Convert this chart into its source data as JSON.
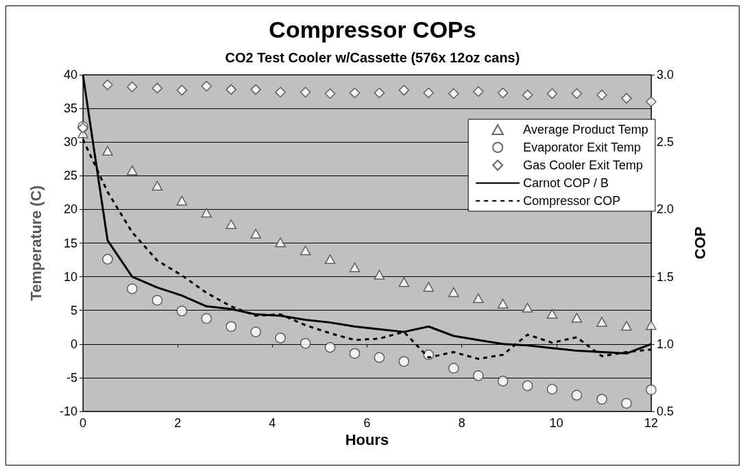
{
  "chart_data": {
    "type": "scatter",
    "title": "Compressor COPs",
    "subtitle": "CO2 Test Cooler w/Cassette (576x 12oz cans)",
    "xlabel": "Hours",
    "ylabel": "Temperature (C)",
    "y2label": "COP",
    "x": [
      0,
      0.52,
      1.04,
      1.57,
      2.09,
      2.61,
      3.13,
      3.65,
      4.17,
      4.7,
      5.22,
      5.74,
      6.26,
      6.78,
      7.3,
      7.83,
      8.35,
      8.87,
      9.39,
      9.91,
      10.43,
      10.96,
      11.48,
      12
    ],
    "series": [
      {
        "name": "Average Product Temp",
        "marker": "triangle",
        "color": "#ffffff",
        "values": [
          31.3,
          28.7,
          25.8,
          23.5,
          21.3,
          19.5,
          17.8,
          16.4,
          15.1,
          13.9,
          12.6,
          11.4,
          10.3,
          9.2,
          8.5,
          7.7,
          6.8,
          6.0,
          5.4,
          4.5,
          3.9,
          3.3,
          2.7,
          2.8
        ]
      },
      {
        "name": "Evaporator Exit Temp",
        "marker": "circle",
        "color": "#ffffff",
        "values": [
          32.3,
          12.6,
          8.2,
          6.5,
          4.9,
          3.8,
          2.6,
          1.8,
          0.9,
          0.1,
          -0.5,
          -1.4,
          -2.0,
          -2.6,
          -1.6,
          -3.6,
          -4.7,
          -5.5,
          -6.2,
          -6.7,
          -7.6,
          -8.2,
          -8.8,
          -6.8
        ]
      },
      {
        "name": "Gas Cooler Exit Temp",
        "marker": "diamond",
        "color": "#ffffff",
        "values": [
          32.1,
          38.5,
          38.2,
          38.0,
          37.7,
          38.3,
          37.8,
          37.8,
          37.4,
          37.4,
          37.2,
          37.3,
          37.3,
          37.7,
          37.3,
          37.2,
          37.5,
          37.3,
          37.0,
          37.2,
          37.2,
          37.0,
          36.5,
          36.0
        ]
      },
      {
        "name": "Carnot COP / B",
        "type": "line",
        "axis": "y2",
        "marker": "none",
        "line_style": "solid",
        "color": "#000000",
        "values": [
          3.0,
          1.77,
          1.5,
          1.42,
          1.36,
          1.28,
          1.26,
          1.22,
          1.21,
          1.18,
          1.16,
          1.13,
          1.11,
          1.09,
          1.13,
          1.06,
          1.03,
          1.0,
          0.99,
          0.97,
          0.95,
          0.94,
          0.93,
          1.0
        ]
      },
      {
        "name": "Compressor COP",
        "type": "line",
        "axis": "y2",
        "marker": "none",
        "line_style": "dashed",
        "color": "#000000",
        "values": [
          2.52,
          2.13,
          1.83,
          1.62,
          1.51,
          1.38,
          1.28,
          1.21,
          1.22,
          1.14,
          1.08,
          1.03,
          1.04,
          1.09,
          0.9,
          0.94,
          0.89,
          0.92,
          1.07,
          1.01,
          1.05,
          0.91,
          0.94,
          0.96
        ]
      }
    ],
    "xlim": [
      0,
      12
    ],
    "xticks": [
      0,
      2,
      4,
      6,
      8,
      10,
      12
    ],
    "ylim": [
      -10,
      40
    ],
    "yticks": [
      -10,
      -5,
      0,
      5,
      10,
      15,
      20,
      25,
      30,
      35,
      40
    ],
    "y2lim": [
      0.5,
      3.0
    ],
    "y2ticks": [
      {
        "value": 0.5,
        "label": "0.5"
      },
      {
        "value": 1.0,
        "label": "1.0"
      },
      {
        "value": 1.5,
        "label": "1.5"
      },
      {
        "value": 2.0,
        "label": "2.0"
      },
      {
        "value": 2.5,
        "label": "2.5"
      },
      {
        "value": 3.0,
        "label": "3.0"
      }
    ],
    "grid": "y",
    "legend": "top right"
  }
}
